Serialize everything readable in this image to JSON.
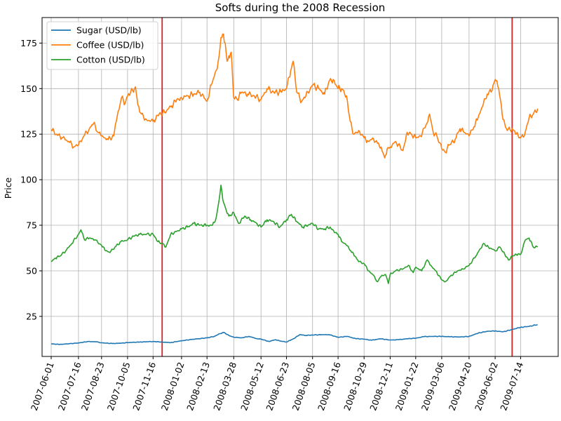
{
  "chart_data": {
    "type": "line",
    "title": "Softs during the 2008 Recession",
    "xlabel": "",
    "ylabel": "Price",
    "xlim": [
      "2007-05-17",
      "2009-09-14"
    ],
    "ylim": [
      3,
      189
    ],
    "grid": true,
    "legend_position": "top-left",
    "x_tick_labels": [
      "2007-06-01",
      "2007-07-16",
      "2007-08-23",
      "2007-10-05",
      "2007-11-16",
      "2008-01-02",
      "2008-02-13",
      "2008-03-28",
      "2008-05-12",
      "2008-06-23",
      "2008-08-05",
      "2008-09-16",
      "2008-10-29",
      "2008-12-11",
      "2009-01-22",
      "2009-03-06",
      "2009-04-20",
      "2009-06-02",
      "2009-07-14"
    ],
    "y_ticks": [
      25,
      50,
      75,
      100,
      125,
      150,
      175
    ],
    "vlines": [
      {
        "x": "2007-12-01",
        "color": "#d62728"
      },
      {
        "x": "2009-06-30",
        "color": "#d62728"
      }
    ],
    "series": [
      {
        "name": "Sugar (USD/lb)",
        "color": "#1f77b4",
        "points": [
          [
            "2007-06-01",
            9.9
          ],
          [
            "2007-06-15",
            9.6
          ],
          [
            "2007-07-01",
            10.0
          ],
          [
            "2007-07-16",
            10.4
          ],
          [
            "2007-08-01",
            11.2
          ],
          [
            "2007-08-15",
            11.0
          ],
          [
            "2007-08-23",
            10.5
          ],
          [
            "2007-09-10",
            10.1
          ],
          [
            "2007-09-25",
            10.3
          ],
          [
            "2007-10-05",
            10.6
          ],
          [
            "2007-10-25",
            10.9
          ],
          [
            "2007-11-16",
            11.2
          ],
          [
            "2007-12-01",
            10.9
          ],
          [
            "2007-12-15",
            10.6
          ],
          [
            "2008-01-02",
            11.6
          ],
          [
            "2008-01-20",
            12.4
          ],
          [
            "2008-02-13",
            13.2
          ],
          [
            "2008-02-25",
            14.0
          ],
          [
            "2008-03-05",
            15.5
          ],
          [
            "2008-03-12",
            16.2
          ],
          [
            "2008-03-20",
            14.5
          ],
          [
            "2008-03-28",
            13.6
          ],
          [
            "2008-04-10",
            13.2
          ],
          [
            "2008-04-22",
            14.0
          ],
          [
            "2008-05-05",
            12.8
          ],
          [
            "2008-05-12",
            12.5
          ],
          [
            "2008-05-25",
            11.2
          ],
          [
            "2008-06-05",
            12.2
          ],
          [
            "2008-06-12",
            11.5
          ],
          [
            "2008-06-23",
            10.9
          ],
          [
            "2008-07-05",
            12.8
          ],
          [
            "2008-07-15",
            15.0
          ],
          [
            "2008-07-25",
            14.5
          ],
          [
            "2008-08-05",
            14.8
          ],
          [
            "2008-08-20",
            14.9
          ],
          [
            "2008-09-01",
            15.0
          ],
          [
            "2008-09-16",
            13.5
          ],
          [
            "2008-10-01",
            14.0
          ],
          [
            "2008-10-15",
            12.8
          ],
          [
            "2008-10-29",
            12.5
          ],
          [
            "2008-11-10",
            11.9
          ],
          [
            "2008-11-25",
            12.7
          ],
          [
            "2008-12-11",
            12.0
          ],
          [
            "2008-12-25",
            12.2
          ],
          [
            "2009-01-08",
            12.7
          ],
          [
            "2009-01-22",
            13.0
          ],
          [
            "2009-02-05",
            13.9
          ],
          [
            "2009-02-20",
            14.0
          ],
          [
            "2009-03-06",
            14.0
          ],
          [
            "2009-03-20",
            13.8
          ],
          [
            "2009-04-05",
            13.7
          ],
          [
            "2009-04-20",
            14.0
          ],
          [
            "2009-05-05",
            15.8
          ],
          [
            "2009-05-20",
            16.8
          ],
          [
            "2009-06-02",
            17.0
          ],
          [
            "2009-06-15",
            16.5
          ],
          [
            "2009-06-30",
            17.8
          ],
          [
            "2009-07-14",
            19.0
          ],
          [
            "2009-07-28",
            19.5
          ],
          [
            "2009-08-11",
            20.5
          ]
        ]
      },
      {
        "name": "Coffee (USD/lb)",
        "color": "#ff7f0e",
        "points": [
          [
            "2007-06-01",
            127.5
          ],
          [
            "2007-06-10",
            125.0
          ],
          [
            "2007-06-20",
            123.0
          ],
          [
            "2007-06-30",
            121.0
          ],
          [
            "2007-07-08",
            118.0
          ],
          [
            "2007-07-16",
            119.0
          ],
          [
            "2007-07-25",
            124.0
          ],
          [
            "2007-08-03",
            128.0
          ],
          [
            "2007-08-10",
            131.0
          ],
          [
            "2007-08-17",
            126.0
          ],
          [
            "2007-08-23",
            124.0
          ],
          [
            "2007-09-03",
            122.0
          ],
          [
            "2007-09-12",
            124.0
          ],
          [
            "2007-09-18",
            135.0
          ],
          [
            "2007-09-25",
            145.0
          ],
          [
            "2007-10-01",
            142.0
          ],
          [
            "2007-10-05",
            146.0
          ],
          [
            "2007-10-10",
            148.0
          ],
          [
            "2007-10-18",
            151.0
          ],
          [
            "2007-10-22",
            141.0
          ],
          [
            "2007-10-28",
            136.0
          ],
          [
            "2007-11-05",
            133.0
          ],
          [
            "2007-11-16",
            132.0
          ],
          [
            "2007-11-26",
            136.0
          ],
          [
            "2007-12-05",
            137.0
          ],
          [
            "2007-12-15",
            140.0
          ],
          [
            "2007-12-25",
            144.0
          ],
          [
            "2008-01-02",
            145.0
          ],
          [
            "2008-01-12",
            146.0
          ],
          [
            "2008-01-22",
            147.0
          ],
          [
            "2008-02-01",
            148.0
          ],
          [
            "2008-02-13",
            143.0
          ],
          [
            "2008-02-20",
            152.0
          ],
          [
            "2008-02-28",
            160.0
          ],
          [
            "2008-03-04",
            168.0
          ],
          [
            "2008-03-07",
            178.0
          ],
          [
            "2008-03-11",
            180.0
          ],
          [
            "2008-03-14",
            175.0
          ],
          [
            "2008-03-17",
            165.0
          ],
          [
            "2008-03-20",
            168.0
          ],
          [
            "2008-03-24",
            170.0
          ],
          [
            "2008-03-28",
            145.0
          ],
          [
            "2008-04-03",
            144.0
          ],
          [
            "2008-04-10",
            148.0
          ],
          [
            "2008-04-20",
            147.0
          ],
          [
            "2008-05-01",
            146.0
          ],
          [
            "2008-05-12",
            144.0
          ],
          [
            "2008-05-22",
            150.0
          ],
          [
            "2008-06-02",
            148.0
          ],
          [
            "2008-06-15",
            148.0
          ],
          [
            "2008-06-23",
            150.0
          ],
          [
            "2008-06-30",
            160.0
          ],
          [
            "2008-07-04",
            165.0
          ],
          [
            "2008-07-10",
            148.0
          ],
          [
            "2008-07-18",
            143.0
          ],
          [
            "2008-07-25",
            146.0
          ],
          [
            "2008-08-05",
            152.0
          ],
          [
            "2008-08-15",
            150.0
          ],
          [
            "2008-08-25",
            147.0
          ],
          [
            "2008-09-01",
            154.0
          ],
          [
            "2008-09-08",
            155.0
          ],
          [
            "2008-09-16",
            150.0
          ],
          [
            "2008-09-22",
            150.0
          ],
          [
            "2008-09-30",
            146.0
          ],
          [
            "2008-10-06",
            132.0
          ],
          [
            "2008-10-12",
            125.0
          ],
          [
            "2008-10-20",
            127.0
          ],
          [
            "2008-10-29",
            123.0
          ],
          [
            "2008-11-05",
            121.0
          ],
          [
            "2008-11-12",
            123.0
          ],
          [
            "2008-11-20",
            120.0
          ],
          [
            "2008-11-26",
            118.0
          ],
          [
            "2008-12-02",
            112.0
          ],
          [
            "2008-12-06",
            117.0
          ],
          [
            "2008-12-11",
            118.0
          ],
          [
            "2008-12-20",
            121.0
          ],
          [
            "2009-01-01",
            116.0
          ],
          [
            "2009-01-08",
            126.0
          ],
          [
            "2009-01-15",
            125.0
          ],
          [
            "2009-01-22",
            123.0
          ],
          [
            "2009-01-30",
            124.0
          ],
          [
            "2009-02-08",
            130.0
          ],
          [
            "2009-02-14",
            136.0
          ],
          [
            "2009-02-20",
            126.0
          ],
          [
            "2009-02-26",
            124.0
          ],
          [
            "2009-03-06",
            117.0
          ],
          [
            "2009-03-12",
            115.0
          ],
          [
            "2009-03-18",
            119.0
          ],
          [
            "2009-03-28",
            122.0
          ],
          [
            "2009-04-05",
            128.0
          ],
          [
            "2009-04-12",
            126.0
          ],
          [
            "2009-04-20",
            124.0
          ],
          [
            "2009-04-28",
            129.0
          ],
          [
            "2009-05-05",
            134.0
          ],
          [
            "2009-05-12",
            140.0
          ],
          [
            "2009-05-20",
            147.0
          ],
          [
            "2009-05-28",
            149.0
          ],
          [
            "2009-06-02",
            155.0
          ],
          [
            "2009-06-08",
            150.0
          ],
          [
            "2009-06-15",
            133.0
          ],
          [
            "2009-06-22",
            127.0
          ],
          [
            "2009-06-30",
            128.0
          ],
          [
            "2009-07-07",
            125.0
          ],
          [
            "2009-07-14",
            123.0
          ],
          [
            "2009-07-20",
            124.0
          ],
          [
            "2009-07-28",
            134.0
          ],
          [
            "2009-08-04",
            136.0
          ],
          [
            "2009-08-11",
            139.0
          ]
        ]
      },
      {
        "name": "Cotton (USD/lb)",
        "color": "#2ca02c",
        "points": [
          [
            "2007-06-01",
            55.0
          ],
          [
            "2007-06-08",
            57.0
          ],
          [
            "2007-06-15",
            58.0
          ],
          [
            "2007-06-25",
            61.0
          ],
          [
            "2007-07-05",
            65.0
          ],
          [
            "2007-07-16",
            70.0
          ],
          [
            "2007-07-20",
            72.5
          ],
          [
            "2007-07-26",
            67.0
          ],
          [
            "2007-08-03",
            68.0
          ],
          [
            "2007-08-12",
            67.0
          ],
          [
            "2007-08-23",
            64.0
          ],
          [
            "2007-08-30",
            61.0
          ],
          [
            "2007-09-06",
            60.0
          ],
          [
            "2007-09-14",
            63.0
          ],
          [
            "2007-09-24",
            66.0
          ],
          [
            "2007-10-05",
            67.0
          ],
          [
            "2007-10-15",
            69.0
          ],
          [
            "2007-10-25",
            70.0
          ],
          [
            "2007-11-05",
            70.0
          ],
          [
            "2007-11-16",
            70.0
          ],
          [
            "2007-11-24",
            66.0
          ],
          [
            "2007-12-01",
            65.0
          ],
          [
            "2007-12-07",
            63.0
          ],
          [
            "2007-12-15",
            70.0
          ],
          [
            "2008-01-02",
            73.0
          ],
          [
            "2008-01-12",
            74.0
          ],
          [
            "2008-01-22",
            76.0
          ],
          [
            "2008-02-01",
            75.0
          ],
          [
            "2008-02-13",
            75.0
          ],
          [
            "2008-02-22",
            75.0
          ],
          [
            "2008-02-28",
            79.0
          ],
          [
            "2008-03-04",
            89.0
          ],
          [
            "2008-03-07",
            97.0
          ],
          [
            "2008-03-10",
            89.0
          ],
          [
            "2008-03-14",
            85.0
          ],
          [
            "2008-03-20",
            80.0
          ],
          [
            "2008-03-28",
            82.0
          ],
          [
            "2008-04-05",
            76.0
          ],
          [
            "2008-04-15",
            80.0
          ],
          [
            "2008-04-25",
            78.0
          ],
          [
            "2008-05-05",
            76.0
          ],
          [
            "2008-05-12",
            74.0
          ],
          [
            "2008-05-22",
            78.0
          ],
          [
            "2008-06-02",
            77.0
          ],
          [
            "2008-06-12",
            74.0
          ],
          [
            "2008-06-23",
            78.0
          ],
          [
            "2008-07-01",
            81.0
          ],
          [
            "2008-07-10",
            77.0
          ],
          [
            "2008-07-20",
            74.0
          ],
          [
            "2008-08-05",
            76.0
          ],
          [
            "2008-08-15",
            73.0
          ],
          [
            "2008-08-25",
            73.0
          ],
          [
            "2008-09-03",
            74.0
          ],
          [
            "2008-09-10",
            71.0
          ],
          [
            "2008-09-16",
            70.0
          ],
          [
            "2008-09-22",
            66.0
          ],
          [
            "2008-09-30",
            64.0
          ],
          [
            "2008-10-07",
            61.0
          ],
          [
            "2008-10-14",
            58.0
          ],
          [
            "2008-10-20",
            55.0
          ],
          [
            "2008-10-29",
            54.0
          ],
          [
            "2008-11-05",
            50.0
          ],
          [
            "2008-11-12",
            48.0
          ],
          [
            "2008-11-20",
            44.0
          ],
          [
            "2008-11-26",
            47.0
          ],
          [
            "2008-12-03",
            48.0
          ],
          [
            "2008-12-08",
            43.0
          ],
          [
            "2008-12-11",
            48.0
          ],
          [
            "2008-12-20",
            50.0
          ],
          [
            "2009-01-01",
            51.0
          ],
          [
            "2009-01-10",
            53.0
          ],
          [
            "2009-01-18",
            49.0
          ],
          [
            "2009-01-22",
            52.0
          ],
          [
            "2009-02-01",
            50.0
          ],
          [
            "2009-02-10",
            56.0
          ],
          [
            "2009-02-16",
            53.0
          ],
          [
            "2009-02-24",
            50.0
          ],
          [
            "2009-03-06",
            45.0
          ],
          [
            "2009-03-12",
            44.0
          ],
          [
            "2009-03-20",
            47.0
          ],
          [
            "2009-04-01",
            50.0
          ],
          [
            "2009-04-10",
            51.0
          ],
          [
            "2009-04-20",
            53.0
          ],
          [
            "2009-05-01",
            58.0
          ],
          [
            "2009-05-08",
            62.0
          ],
          [
            "2009-05-14",
            65.0
          ],
          [
            "2009-05-22",
            63.0
          ],
          [
            "2009-06-02",
            61.0
          ],
          [
            "2009-06-10",
            63.0
          ],
          [
            "2009-06-18",
            59.0
          ],
          [
            "2009-06-24",
            56.0
          ],
          [
            "2009-06-30",
            58.0
          ],
          [
            "2009-07-07",
            59.0
          ],
          [
            "2009-07-14",
            59.0
          ],
          [
            "2009-07-22",
            67.0
          ],
          [
            "2009-07-28",
            68.0
          ],
          [
            "2009-08-04",
            63.0
          ],
          [
            "2009-08-11",
            63.0
          ]
        ]
      }
    ]
  }
}
